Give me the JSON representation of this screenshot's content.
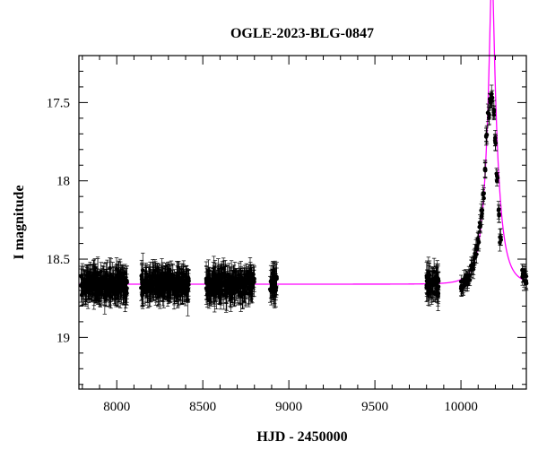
{
  "chart_data": {
    "type": "scatter",
    "title": "OGLE-2023-BLG-0847",
    "xlabel": "HJD - 2450000",
    "ylabel": "I magnitude",
    "xlim": [
      7780,
      10380
    ],
    "ylim": [
      19.33,
      17.2
    ],
    "y_inverted": true,
    "grid": false,
    "x_ticks": [
      8000,
      8500,
      9000,
      9500,
      10000
    ],
    "x_tick_labels": [
      "8000",
      "8500",
      "9000",
      "9500",
      "10000"
    ],
    "y_ticks": [
      17.5,
      18,
      18.5,
      19
    ],
    "y_tick_labels": [
      "17.5",
      "18",
      "18.5",
      "19"
    ],
    "x_minor_step": 100,
    "y_minor_step": 0.1,
    "colors": {
      "points": "#000000",
      "errorbars": "#000000",
      "model": "#ff00ff",
      "axes": "#000000"
    },
    "series": [
      {
        "kind": "points_with_errorbars",
        "baseline_mag": 18.66,
        "scatter_mag": 0.05,
        "typical_error_mag": 0.08,
        "season_ranges": [
          [
            7790,
            8060
          ],
          [
            8140,
            8420
          ],
          [
            8520,
            8800
          ],
          [
            8890,
            8930
          ],
          [
            9800,
            9870
          ]
        ],
        "event_points": [
          [
            10000,
            18.66
          ],
          [
            10010,
            18.69
          ],
          [
            10020,
            18.65
          ],
          [
            10030,
            18.62
          ],
          [
            10040,
            18.64
          ],
          [
            10050,
            18.6
          ],
          [
            10060,
            18.56
          ],
          [
            10070,
            18.54
          ],
          [
            10080,
            18.5
          ],
          [
            10090,
            18.44
          ],
          [
            10100,
            18.38
          ],
          [
            10110,
            18.3
          ],
          [
            10120,
            18.2
          ],
          [
            10130,
            18.08
          ],
          [
            10140,
            17.92
          ],
          [
            10150,
            17.72
          ],
          [
            10160,
            17.58
          ],
          [
            10170,
            17.5
          ],
          [
            10180,
            17.46
          ],
          [
            10190,
            17.56
          ],
          [
            10200,
            17.74
          ],
          [
            10210,
            17.98
          ],
          [
            10220,
            18.2
          ],
          [
            10230,
            18.38
          ],
          [
            10360,
            18.6
          ],
          [
            10370,
            18.62
          ],
          [
            10380,
            18.63
          ]
        ]
      },
      {
        "kind": "model_curve",
        "baseline_mag": 18.66,
        "t0": 10180,
        "tE": 70,
        "u0": 0.16
      }
    ]
  }
}
